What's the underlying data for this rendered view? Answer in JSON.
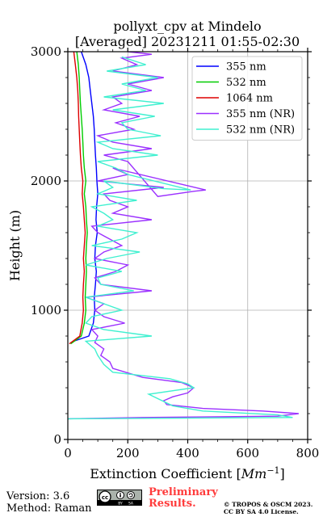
{
  "chart_data": {
    "type": "line",
    "title_line1": "pollyxt_cpv at Mindelo",
    "title_line2": "[Averaged] 20231211 01:55-02:30",
    "xlabel": "Extinction Coefficient [",
    "xlabel_unit": "Mm",
    "xlabel_exp": "−1",
    "xlabel_close": "]",
    "ylabel": "Height (m)",
    "xlim": [
      0,
      800
    ],
    "ylim": [
      0,
      3000
    ],
    "xticks": [
      "0",
      "200",
      "400",
      "600",
      "800"
    ],
    "yticks": [
      "0",
      "1000",
      "2000",
      "3000"
    ],
    "xtick_values": [
      0,
      200,
      400,
      600,
      800
    ],
    "ytick_values": [
      0,
      1000,
      2000,
      3000
    ],
    "grid": true,
    "legend_position": "top-right",
    "series": [
      {
        "name": "355 nm",
        "color": "#0000ff",
        "x": [
          20,
          70,
          85,
          90,
          88,
          92,
          95,
          90,
          92,
          98,
          94,
          96,
          100,
          97,
          95,
          92,
          90,
          88,
          85,
          80,
          75,
          70,
          60,
          45
        ],
        "y": [
          760,
          800,
          900,
          1000,
          1100,
          1200,
          1300,
          1400,
          1500,
          1600,
          1700,
          1800,
          1900,
          2000,
          2100,
          2200,
          2300,
          2400,
          2500,
          2600,
          2700,
          2800,
          2900,
          3000
        ]
      },
      {
        "name": "532 nm",
        "color": "#00cc00",
        "x": [
          10,
          45,
          55,
          60,
          58,
          60,
          62,
          60,
          62,
          65,
          62,
          60,
          55,
          60,
          55,
          52,
          50,
          48,
          45,
          42,
          40,
          38,
          35,
          30
        ],
        "y": [
          740,
          800,
          900,
          1000,
          1100,
          1200,
          1300,
          1400,
          1500,
          1600,
          1700,
          1800,
          1900,
          2000,
          2100,
          2200,
          2300,
          2400,
          2500,
          2600,
          2700,
          2800,
          2900,
          3000
        ]
      },
      {
        "name": "1064 nm",
        "color": "#dd0000",
        "x": [
          5,
          40,
          48,
          52,
          50,
          52,
          55,
          52,
          55,
          58,
          55,
          52,
          48,
          50,
          45,
          42,
          40,
          38,
          36,
          35,
          33,
          30,
          25,
          20
        ],
        "y": [
          740,
          800,
          900,
          1000,
          1100,
          1200,
          1300,
          1400,
          1500,
          1600,
          1700,
          1800,
          1900,
          2000,
          2100,
          2200,
          2300,
          2400,
          2500,
          2600,
          2700,
          2800,
          2900,
          3000
        ]
      },
      {
        "name": "355 nm (NR)",
        "color": "#9b30ff",
        "x": [
          0,
          250,
          700,
          770,
          650,
          450,
          330,
          320,
          350,
          400,
          420,
          380,
          250,
          150,
          140,
          110,
          120,
          90,
          100,
          80,
          190,
          120,
          90,
          120,
          60,
          280,
          110,
          90,
          160,
          200,
          90,
          120,
          180,
          140,
          100,
          80,
          280,
          150,
          200,
          140,
          120,
          320,
          100,
          200,
          150,
          460,
          420,
          300,
          200,
          120,
          280,
          150,
          100,
          220,
          160,
          240,
          120,
          180,
          150,
          280,
          200,
          320,
          150,
          230,
          180,
          280,
          200
        ],
        "y": [
          160,
          170,
          180,
          200,
          220,
          240,
          270,
          300,
          330,
          360,
          400,
          440,
          480,
          550,
          600,
          650,
          700,
          750,
          800,
          850,
          900,
          950,
          1000,
          1050,
          1100,
          1150,
          1200,
          1250,
          1300,
          1350,
          1400,
          1450,
          1500,
          1550,
          1600,
          1650,
          1700,
          1750,
          1800,
          1850,
          1900,
          1950,
          2000,
          2050,
          2100,
          1930,
          1920,
          1880,
          2150,
          2200,
          2250,
          2300,
          2350,
          2400,
          2450,
          2500,
          2550,
          2600,
          2650,
          2700,
          2750,
          2800,
          2850,
          2900,
          2950,
          2980,
          3000
        ]
      },
      {
        "name": "532 nm (NR)",
        "color": "#40f0d0",
        "x": [
          0,
          0,
          750,
          700,
          450,
          350,
          270,
          420,
          400,
          340,
          150,
          120,
          100,
          90,
          60,
          280,
          120,
          60,
          80,
          180,
          120,
          60,
          220,
          110,
          100,
          180,
          60,
          130,
          240,
          80,
          180,
          230,
          100,
          150,
          120,
          80,
          230,
          100,
          150,
          120,
          320,
          410,
          200,
          160,
          100,
          300,
          150,
          100,
          310,
          200,
          180,
          290,
          150,
          320,
          120,
          260,
          180,
          300,
          130,
          260,
          180
        ],
        "y": [
          150,
          160,
          170,
          190,
          220,
          260,
          350,
          400,
          430,
          470,
          520,
          580,
          650,
          700,
          760,
          800,
          850,
          900,
          950,
          1000,
          1050,
          1100,
          1150,
          1200,
          1250,
          1300,
          1350,
          1400,
          1450,
          1500,
          1550,
          1600,
          1650,
          1700,
          1750,
          1800,
          1850,
          1900,
          1950,
          2000,
          1940,
          1930,
          2050,
          2100,
          2150,
          2200,
          2250,
          2300,
          2350,
          2400,
          2450,
          2500,
          2550,
          2600,
          2650,
          2700,
          2750,
          2800,
          2850,
          2900,
          2960
        ]
      }
    ]
  },
  "footer": {
    "version": "Version: 3.6",
    "method": "Method: Raman",
    "preliminary_line1": "Preliminary",
    "preliminary_line2": "Results.",
    "copyright_line1": "© TROPOS & OSCM 2023.",
    "copyright_line2": "CC BY SA 4.0 License.",
    "license_badge": "cc BY SA"
  }
}
